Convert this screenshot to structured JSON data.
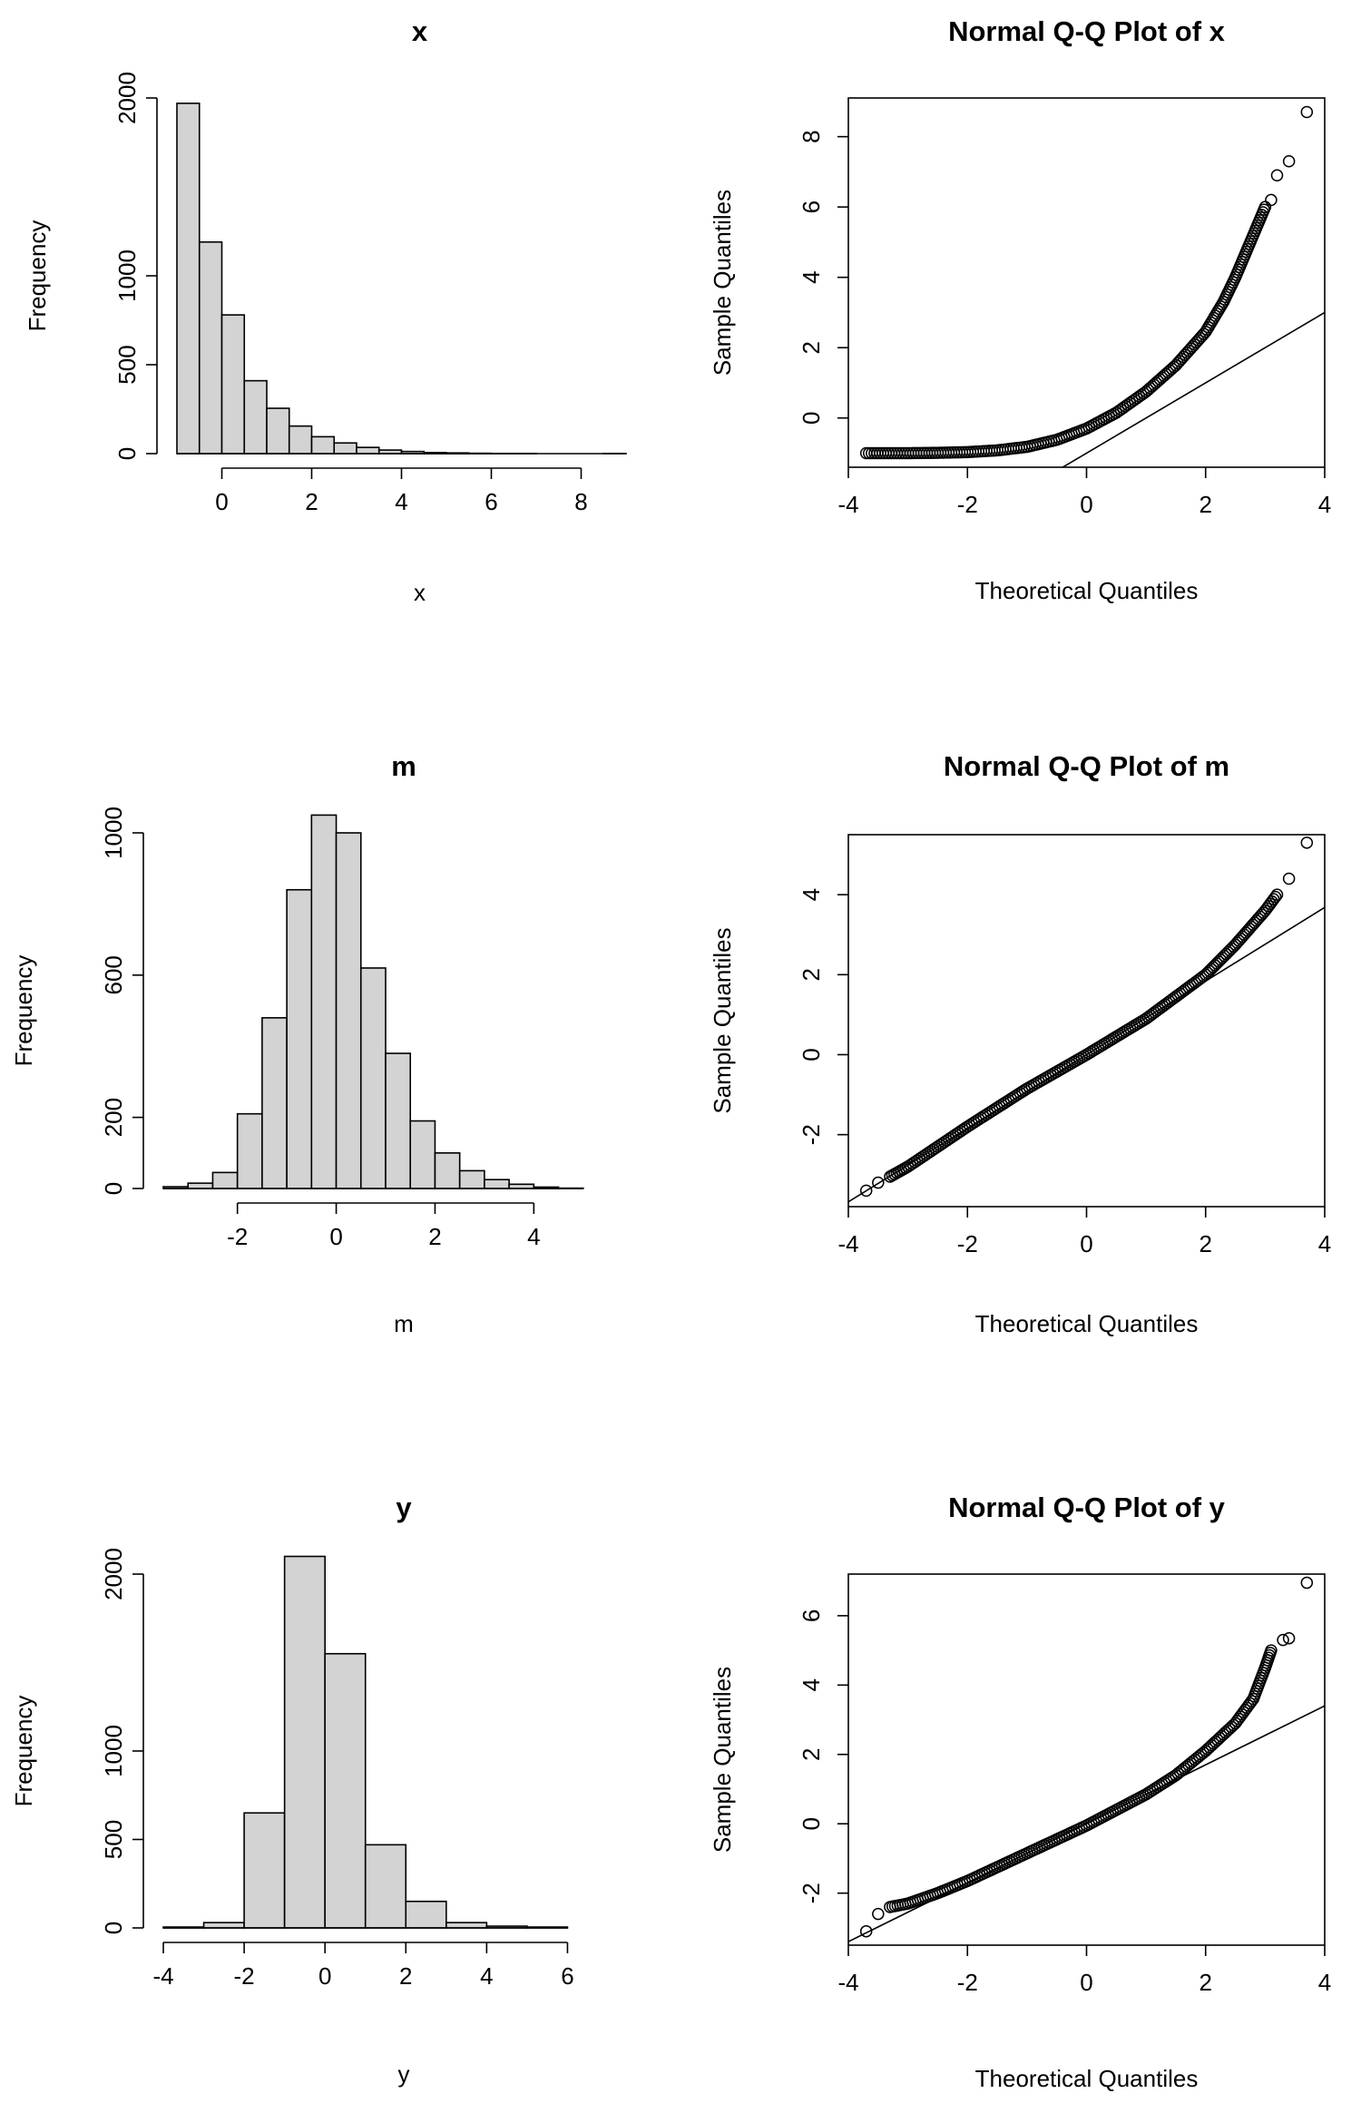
{
  "chart_data": [
    {
      "id": "hist_x",
      "type": "bar",
      "title": "x",
      "xlabel": "x",
      "ylabel": "Frequency",
      "bins": [
        [
          -1.0,
          -0.5
        ],
        [
          -0.5,
          0.0
        ],
        [
          0.0,
          0.5
        ],
        [
          0.5,
          1.0
        ],
        [
          1.0,
          1.5
        ],
        [
          1.5,
          2.0
        ],
        [
          2.0,
          2.5
        ],
        [
          2.5,
          3.0
        ],
        [
          3.0,
          3.5
        ],
        [
          3.5,
          4.0
        ],
        [
          4.0,
          4.5
        ],
        [
          4.5,
          5.0
        ],
        [
          5.0,
          5.5
        ],
        [
          5.5,
          6.0
        ],
        [
          6.0,
          6.5
        ],
        [
          6.5,
          7.0
        ],
        [
          7.0,
          7.5
        ],
        [
          7.5,
          8.0
        ],
        [
          8.0,
          8.5
        ],
        [
          8.5,
          9.0
        ]
      ],
      "values": [
        1970,
        1190,
        780,
        410,
        255,
        155,
        95,
        60,
        35,
        20,
        12,
        6,
        4,
        2,
        1,
        1,
        0,
        0,
        0,
        1
      ],
      "xlim": [
        -1,
        9
      ],
      "ylim": [
        0,
        2000
      ],
      "xticks": [
        "0",
        "2",
        "4",
        "6",
        "8"
      ],
      "yticks": [
        "0",
        "500",
        "1000",
        "2000"
      ],
      "ytick_values": [
        0,
        500,
        1000,
        2000
      ]
    },
    {
      "id": "qq_x",
      "type": "scatter",
      "title": "Normal Q-Q Plot of x",
      "xlabel": "Theoretical Quantiles",
      "ylabel": "Sample Quantiles",
      "xlim": [
        -4,
        4
      ],
      "ylim": [
        -1.4,
        9.1
      ],
      "xticks": [
        "-4",
        "-2",
        "0",
        "2",
        "4"
      ],
      "yticks": [
        "0",
        "2",
        "4",
        "6",
        "8"
      ],
      "curve": [
        [
          -3.7,
          -1.0
        ],
        [
          -3.0,
          -1.0
        ],
        [
          -2.5,
          -0.99
        ],
        [
          -2.0,
          -0.97
        ],
        [
          -1.5,
          -0.92
        ],
        [
          -1.0,
          -0.82
        ],
        [
          -0.5,
          -0.62
        ],
        [
          0.0,
          -0.3
        ],
        [
          0.5,
          0.15
        ],
        [
          1.0,
          0.75
        ],
        [
          1.5,
          1.5
        ],
        [
          2.0,
          2.45
        ],
        [
          2.3,
          3.3
        ],
        [
          2.5,
          4.0
        ],
        [
          2.7,
          4.8
        ],
        [
          2.85,
          5.4
        ],
        [
          3.0,
          6.0
        ]
      ],
      "outliers": [
        [
          3.2,
          6.9
        ],
        [
          3.4,
          7.3
        ],
        [
          3.7,
          8.7
        ],
        [
          3.1,
          6.2
        ]
      ],
      "qqline": {
        "slope": 1.0,
        "intercept": -1.0
      }
    },
    {
      "id": "hist_m",
      "type": "bar",
      "title": "m",
      "xlabel": "m",
      "ylabel": "Frequency",
      "bins": [
        [
          -3.5,
          -3.0
        ],
        [
          -3.0,
          -2.5
        ],
        [
          -2.5,
          -2.0
        ],
        [
          -2.0,
          -1.5
        ],
        [
          -1.5,
          -1.0
        ],
        [
          -1.0,
          -0.5
        ],
        [
          -0.5,
          0.0
        ],
        [
          0.0,
          0.5
        ],
        [
          0.5,
          1.0
        ],
        [
          1.0,
          1.5
        ],
        [
          1.5,
          2.0
        ],
        [
          2.0,
          2.5
        ],
        [
          2.5,
          3.0
        ],
        [
          3.0,
          3.5
        ],
        [
          3.5,
          4.0
        ],
        [
          4.0,
          4.5
        ],
        [
          4.5,
          5.0
        ]
      ],
      "values": [
        5,
        15,
        45,
        210,
        480,
        840,
        1050,
        1000,
        620,
        380,
        190,
        100,
        50,
        25,
        12,
        4,
        1
      ],
      "xlim": [
        -3.5,
        5.5
      ],
      "ylim": [
        0,
        1000
      ],
      "xticks": [
        "-2",
        "0",
        "2",
        "4"
      ],
      "yticks": [
        "0",
        "200",
        "600",
        "1000"
      ],
      "ytick_values": [
        0,
        200,
        600,
        1000
      ]
    },
    {
      "id": "qq_m",
      "type": "scatter",
      "title": "Normal Q-Q Plot of m",
      "xlabel": "Theoretical Quantiles",
      "ylabel": "Sample Quantiles",
      "xlim": [
        -4,
        4
      ],
      "ylim": [
        -3.8,
        5.5
      ],
      "xticks": [
        "-4",
        "-2",
        "0",
        "2",
        "4"
      ],
      "yticks": [
        "-2",
        "0",
        "2",
        "4"
      ],
      "curve": [
        [
          -3.3,
          -3.05
        ],
        [
          -3.0,
          -2.8
        ],
        [
          -2.5,
          -2.3
        ],
        [
          -2.0,
          -1.8
        ],
        [
          -1.0,
          -0.85
        ],
        [
          0.0,
          0.0
        ],
        [
          1.0,
          0.9
        ],
        [
          1.5,
          1.45
        ],
        [
          2.0,
          2.0
        ],
        [
          2.5,
          2.75
        ],
        [
          3.0,
          3.6
        ],
        [
          3.2,
          4.0
        ]
      ],
      "outliers": [
        [
          -3.7,
          -3.4
        ],
        [
          -3.5,
          -3.2
        ],
        [
          3.4,
          4.4
        ],
        [
          3.7,
          5.3
        ]
      ],
      "qqline": {
        "slope": 0.92,
        "intercept": 0.0
      }
    },
    {
      "id": "hist_y",
      "type": "bar",
      "title": "y",
      "xlabel": "y",
      "ylabel": "Frequency",
      "bins": [
        [
          -4,
          -3
        ],
        [
          -3,
          -2
        ],
        [
          -2,
          -1
        ],
        [
          -1,
          0
        ],
        [
          0,
          1
        ],
        [
          1,
          2
        ],
        [
          2,
          3
        ],
        [
          3,
          4
        ],
        [
          4,
          5
        ],
        [
          5,
          6
        ]
      ],
      "values": [
        5,
        30,
        650,
        2100,
        1550,
        470,
        150,
        30,
        10,
        5
      ],
      "xlim": [
        -4,
        7
      ],
      "ylim": [
        0,
        2000
      ],
      "xticks": [
        "-4",
        "-2",
        "0",
        "2",
        "4",
        "6"
      ],
      "yticks": [
        "0",
        "500",
        "1000",
        "2000"
      ],
      "ytick_values": [
        0,
        500,
        1000,
        2000
      ]
    },
    {
      "id": "qq_y",
      "type": "scatter",
      "title": "Normal Q-Q Plot of y",
      "xlabel": "Theoretical Quantiles",
      "ylabel": "Sample Quantiles",
      "xlim": [
        -4,
        4
      ],
      "ylim": [
        -3.5,
        7.2
      ],
      "xticks": [
        "-4",
        "-2",
        "0",
        "2",
        "4"
      ],
      "yticks": [
        "-2",
        "0",
        "2",
        "4",
        "6"
      ],
      "curve": [
        [
          -3.3,
          -2.4
        ],
        [
          -3.0,
          -2.3
        ],
        [
          -2.5,
          -2.0
        ],
        [
          -2.0,
          -1.65
        ],
        [
          -1.0,
          -0.85
        ],
        [
          0.0,
          -0.05
        ],
        [
          1.0,
          0.85
        ],
        [
          1.5,
          1.4
        ],
        [
          2.0,
          2.1
        ],
        [
          2.5,
          2.9
        ],
        [
          2.8,
          3.6
        ],
        [
          3.0,
          4.5
        ],
        [
          3.1,
          5.0
        ]
      ],
      "outliers": [
        [
          -3.7,
          -3.1
        ],
        [
          -3.5,
          -2.6
        ],
        [
          3.3,
          5.3
        ],
        [
          3.4,
          5.35
        ],
        [
          3.7,
          6.95
        ]
      ],
      "qqline": {
        "slope": 0.85,
        "intercept": 0.0
      }
    }
  ]
}
